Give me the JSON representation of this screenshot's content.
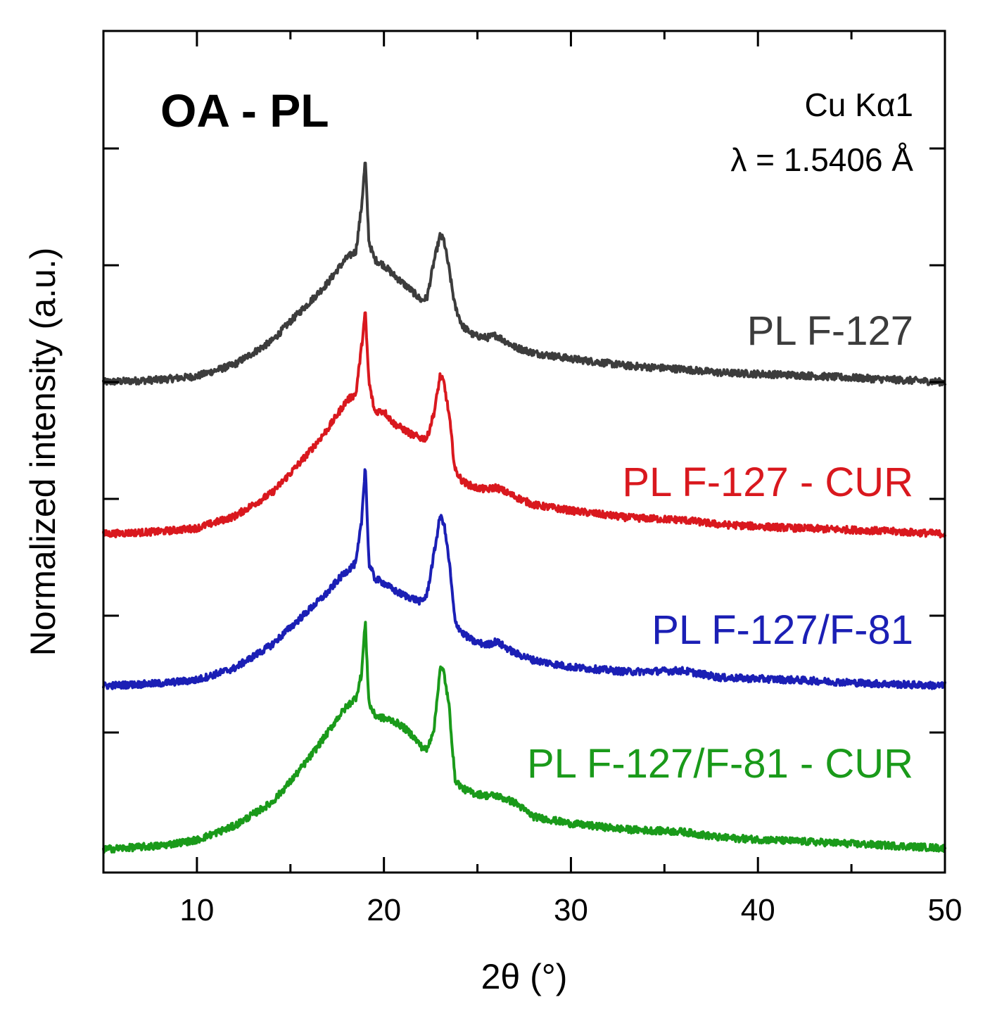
{
  "chart_data": {
    "type": "line",
    "title": "OA - PL",
    "xlabel": "2θ (°)",
    "ylabel": "Normalized intensity (a.u.)",
    "xlim": [
      5,
      50
    ],
    "ylim": [
      0,
      7
    ],
    "x_ticks": [
      10,
      20,
      30,
      40,
      50
    ],
    "x_tick_labels": [
      "10",
      "20",
      "30",
      "40",
      "50"
    ],
    "y_tick_values": [
      1,
      2,
      3,
      4,
      5,
      6
    ],
    "y_tick_labels_shown": false,
    "grid": false,
    "annotations": {
      "source": "Cu Kα1",
      "wavelength": "λ = 1.5406 Å"
    },
    "series": [
      {
        "name": "PL F-127",
        "color": "#3c3c3c",
        "offset": 4.0,
        "x": [
          5,
          8,
          10,
          12,
          14,
          15,
          16,
          17,
          17.5,
          18,
          18.5,
          18.8,
          19.0,
          19.2,
          19.5,
          20.0,
          20.5,
          21.0,
          21.5,
          22.0,
          22.3,
          22.7,
          23.0,
          23.2,
          23.5,
          23.8,
          24.2,
          24.8,
          25.5,
          26,
          27,
          28,
          30,
          33,
          36,
          38,
          42,
          46,
          50
        ],
        "values": [
          0.0,
          0.02,
          0.05,
          0.15,
          0.35,
          0.52,
          0.68,
          0.85,
          0.96,
          1.06,
          1.12,
          1.5,
          1.9,
          1.2,
          1.05,
          1.0,
          0.92,
          0.85,
          0.78,
          0.7,
          0.72,
          1.05,
          1.25,
          1.22,
          0.95,
          0.65,
          0.48,
          0.4,
          0.38,
          0.4,
          0.3,
          0.25,
          0.2,
          0.14,
          0.11,
          0.08,
          0.06,
          0.03,
          0.0
        ]
      },
      {
        "name": "PL F-127 - CUR",
        "color": "#d9181e",
        "offset": 2.7,
        "x": [
          5,
          8,
          10,
          12,
          14,
          15,
          16,
          17,
          17.5,
          18,
          18.5,
          18.8,
          19.0,
          19.2,
          19.5,
          20.0,
          20.5,
          21.0,
          21.5,
          22.0,
          22.3,
          22.7,
          23.0,
          23.2,
          23.5,
          23.8,
          24.2,
          24.8,
          25.5,
          26,
          27,
          28,
          30,
          33,
          36,
          38,
          42,
          46,
          50
        ],
        "values": [
          0.0,
          0.02,
          0.05,
          0.15,
          0.35,
          0.52,
          0.7,
          0.9,
          1.02,
          1.14,
          1.2,
          1.6,
          1.9,
          1.3,
          1.05,
          1.05,
          0.95,
          0.9,
          0.85,
          0.82,
          0.82,
          1.05,
          1.35,
          1.3,
          1.0,
          0.55,
          0.45,
          0.4,
          0.38,
          0.4,
          0.32,
          0.25,
          0.2,
          0.14,
          0.12,
          0.08,
          0.05,
          0.03,
          0.0
        ]
      },
      {
        "name": "PL F-127/F-81",
        "color": "#1b1fb5",
        "offset": 1.4,
        "x": [
          5,
          8,
          10,
          12,
          14,
          15,
          16,
          17,
          17.5,
          18,
          18.5,
          18.8,
          19.0,
          19.2,
          19.5,
          20.0,
          20.5,
          21.0,
          21.5,
          22.0,
          22.3,
          22.7,
          23.0,
          23.2,
          23.5,
          23.8,
          24.2,
          24.8,
          25.5,
          26,
          27,
          28,
          30,
          33,
          36,
          38,
          42,
          46,
          50
        ],
        "values": [
          0.0,
          0.02,
          0.05,
          0.15,
          0.35,
          0.5,
          0.65,
          0.8,
          0.9,
          0.98,
          1.05,
          1.4,
          1.9,
          1.05,
          0.92,
          0.88,
          0.82,
          0.78,
          0.75,
          0.72,
          0.78,
          1.15,
          1.45,
          1.4,
          1.05,
          0.55,
          0.45,
          0.38,
          0.35,
          0.38,
          0.28,
          0.22,
          0.16,
          0.12,
          0.13,
          0.07,
          0.05,
          0.02,
          0.0
        ]
      },
      {
        "name": "PL F-127/F-81 - CUR",
        "color": "#1a9a1a",
        "offset": 0.0,
        "x": [
          5,
          8,
          10,
          12,
          14,
          15,
          16,
          17,
          17.5,
          18,
          18.5,
          18.8,
          19.0,
          19.2,
          19.5,
          20.0,
          20.5,
          21.0,
          21.5,
          22.0,
          22.3,
          22.7,
          23.0,
          23.2,
          23.5,
          23.8,
          24.2,
          24.8,
          25.5,
          26,
          27,
          28,
          30,
          33,
          36,
          38,
          42,
          46,
          50
        ],
        "values": [
          0.0,
          0.03,
          0.08,
          0.2,
          0.4,
          0.58,
          0.78,
          1.0,
          1.12,
          1.22,
          1.3,
          1.5,
          1.95,
          1.25,
          1.15,
          1.12,
          1.1,
          1.05,
          0.98,
          0.88,
          0.85,
          1.05,
          1.55,
          1.52,
          1.2,
          0.6,
          0.52,
          0.48,
          0.46,
          0.46,
          0.4,
          0.28,
          0.22,
          0.17,
          0.15,
          0.1,
          0.07,
          0.04,
          0.01
        ]
      }
    ]
  }
}
